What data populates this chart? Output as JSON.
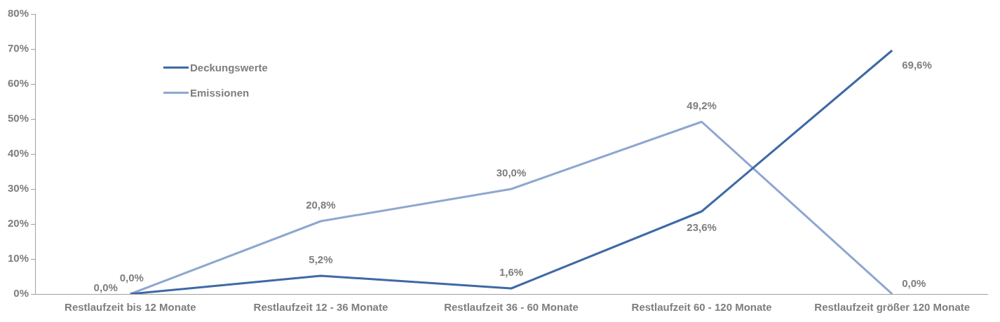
{
  "chart_data": {
    "type": "line",
    "categories": [
      "Restlaufzeit bis 12 Monate",
      "Restlaufzeit 12 - 36 Monate",
      "Restlaufzeit 36 - 60 Monate",
      "Restlaufzeit 60 - 120 Monate",
      "Restlaufzeit größer 120 Monate"
    ],
    "series": [
      {
        "name": "Deckungswerte",
        "color": "#3e69a6",
        "values": [
          0,
          5.2,
          1.6,
          23.6,
          69.6
        ],
        "value_labels": [
          "0,0%",
          "5,2%",
          "1,6%",
          "23,6%",
          "69,6%"
        ]
      },
      {
        "name": "Emissionen",
        "color": "#8ea7d0",
        "values": [
          0,
          20.8,
          30,
          49.2,
          0
        ],
        "value_labels": [
          "0,0%",
          "20,8%",
          "30,0%",
          "49,2%",
          "0,0%"
        ]
      }
    ],
    "ylim": [
      0,
      80
    ],
    "yticks": [
      {
        "value": 0,
        "label": "0%"
      },
      {
        "value": 10,
        "label": "10%"
      },
      {
        "value": 20,
        "label": "20%"
      },
      {
        "value": 30,
        "label": "30%"
      },
      {
        "value": 40,
        "label": "40%"
      },
      {
        "value": 50,
        "label": "50%"
      },
      {
        "value": 60,
        "label": "60%"
      },
      {
        "value": 70,
        "label": "70%"
      },
      {
        "value": 80,
        "label": "80%"
      }
    ],
    "grid": false,
    "legend": "top left",
    "marker": "none",
    "line_style": "solid"
  }
}
